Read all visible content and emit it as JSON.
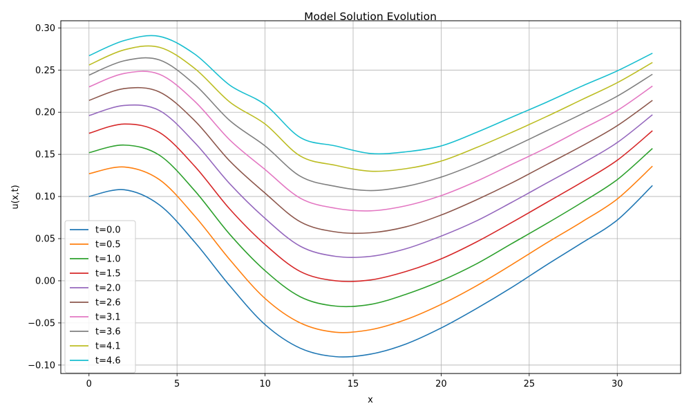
{
  "chart_data": {
    "type": "line",
    "title": "Model Solution Evolution",
    "xlabel": "x",
    "ylabel": "u(x,t)",
    "xlim": [
      -1.6,
      33.6
    ],
    "ylim": [
      -0.11,
      0.3085
    ],
    "xticks": [
      0,
      5,
      10,
      15,
      20,
      25,
      30
    ],
    "xtick_labels": [
      "0",
      "5",
      "10",
      "15",
      "20",
      "25",
      "30"
    ],
    "yticks": [
      -0.1,
      -0.05,
      0.0,
      0.05,
      0.1,
      0.15,
      0.2,
      0.25,
      0.3
    ],
    "ytick_labels": [
      "−0.10",
      "−0.05",
      "0.00",
      "0.05",
      "0.10",
      "0.15",
      "0.20",
      "0.25",
      "0.30"
    ],
    "grid": true,
    "legend_position": "lower-left",
    "x": [
      0,
      2,
      4,
      6,
      8,
      10,
      12,
      14,
      16,
      18,
      20,
      22,
      24,
      26,
      28,
      30,
      32
    ],
    "series": [
      {
        "name": "t=0.0",
        "color": "#1f77b4",
        "values": [
          0.1,
          0.108,
          0.09,
          0.046,
          -0.006,
          -0.052,
          -0.08,
          -0.09,
          -0.087,
          -0.075,
          -0.056,
          -0.033,
          -0.008,
          0.019,
          0.045,
          0.072,
          0.113
        ]
      },
      {
        "name": "t=0.5",
        "color": "#ff7f0e",
        "values": [
          0.127,
          0.135,
          0.12,
          0.077,
          0.025,
          -0.021,
          -0.05,
          -0.061,
          -0.058,
          -0.046,
          -0.028,
          -0.006,
          0.019,
          0.045,
          0.07,
          0.097,
          0.136
        ]
      },
      {
        "name": "t=1.0",
        "color": "#2ca02c",
        "values": [
          0.152,
          0.161,
          0.149,
          0.107,
          0.055,
          0.012,
          -0.019,
          -0.03,
          -0.028,
          -0.016,
          0.0,
          0.02,
          0.044,
          0.068,
          0.093,
          0.12,
          0.157
        ]
      },
      {
        "name": "t=1.5",
        "color": "#d62728",
        "values": [
          0.175,
          0.186,
          0.176,
          0.136,
          0.085,
          0.043,
          0.011,
          0.0,
          0.001,
          0.011,
          0.026,
          0.046,
          0.069,
          0.093,
          0.117,
          0.143,
          0.178
        ]
      },
      {
        "name": "t=2.0",
        "color": "#9467bd",
        "values": [
          0.196,
          0.208,
          0.202,
          0.164,
          0.115,
          0.074,
          0.041,
          0.029,
          0.029,
          0.038,
          0.053,
          0.071,
          0.093,
          0.116,
          0.139,
          0.164,
          0.197
        ]
      },
      {
        "name": "t=2.6",
        "color": "#8c564b",
        "values": [
          0.214,
          0.228,
          0.224,
          0.19,
          0.142,
          0.104,
          0.07,
          0.058,
          0.057,
          0.064,
          0.078,
          0.096,
          0.116,
          0.138,
          0.16,
          0.184,
          0.214
        ]
      },
      {
        "name": "t=3.1",
        "color": "#e377c2",
        "values": [
          0.23,
          0.246,
          0.245,
          0.213,
          0.167,
          0.132,
          0.098,
          0.086,
          0.083,
          0.089,
          0.101,
          0.118,
          0.138,
          0.158,
          0.18,
          0.202,
          0.231
        ]
      },
      {
        "name": "t=3.6",
        "color": "#7f7f7f",
        "values": [
          0.244,
          0.261,
          0.262,
          0.233,
          0.19,
          0.16,
          0.124,
          0.112,
          0.107,
          0.112,
          0.123,
          0.139,
          0.158,
          0.178,
          0.198,
          0.219,
          0.245
        ]
      },
      {
        "name": "t=4.1",
        "color": "#bcbd22",
        "values": [
          0.256,
          0.274,
          0.277,
          0.252,
          0.212,
          0.186,
          0.148,
          0.137,
          0.13,
          0.133,
          0.142,
          0.158,
          0.176,
          0.195,
          0.215,
          0.235,
          0.259
        ]
      },
      {
        "name": "t=4.6",
        "color": "#17becf",
        "values": [
          0.267,
          0.285,
          0.29,
          0.269,
          0.232,
          0.209,
          0.17,
          0.16,
          0.151,
          0.153,
          0.16,
          0.176,
          0.194,
          0.212,
          0.231,
          0.249,
          0.27
        ]
      }
    ]
  }
}
